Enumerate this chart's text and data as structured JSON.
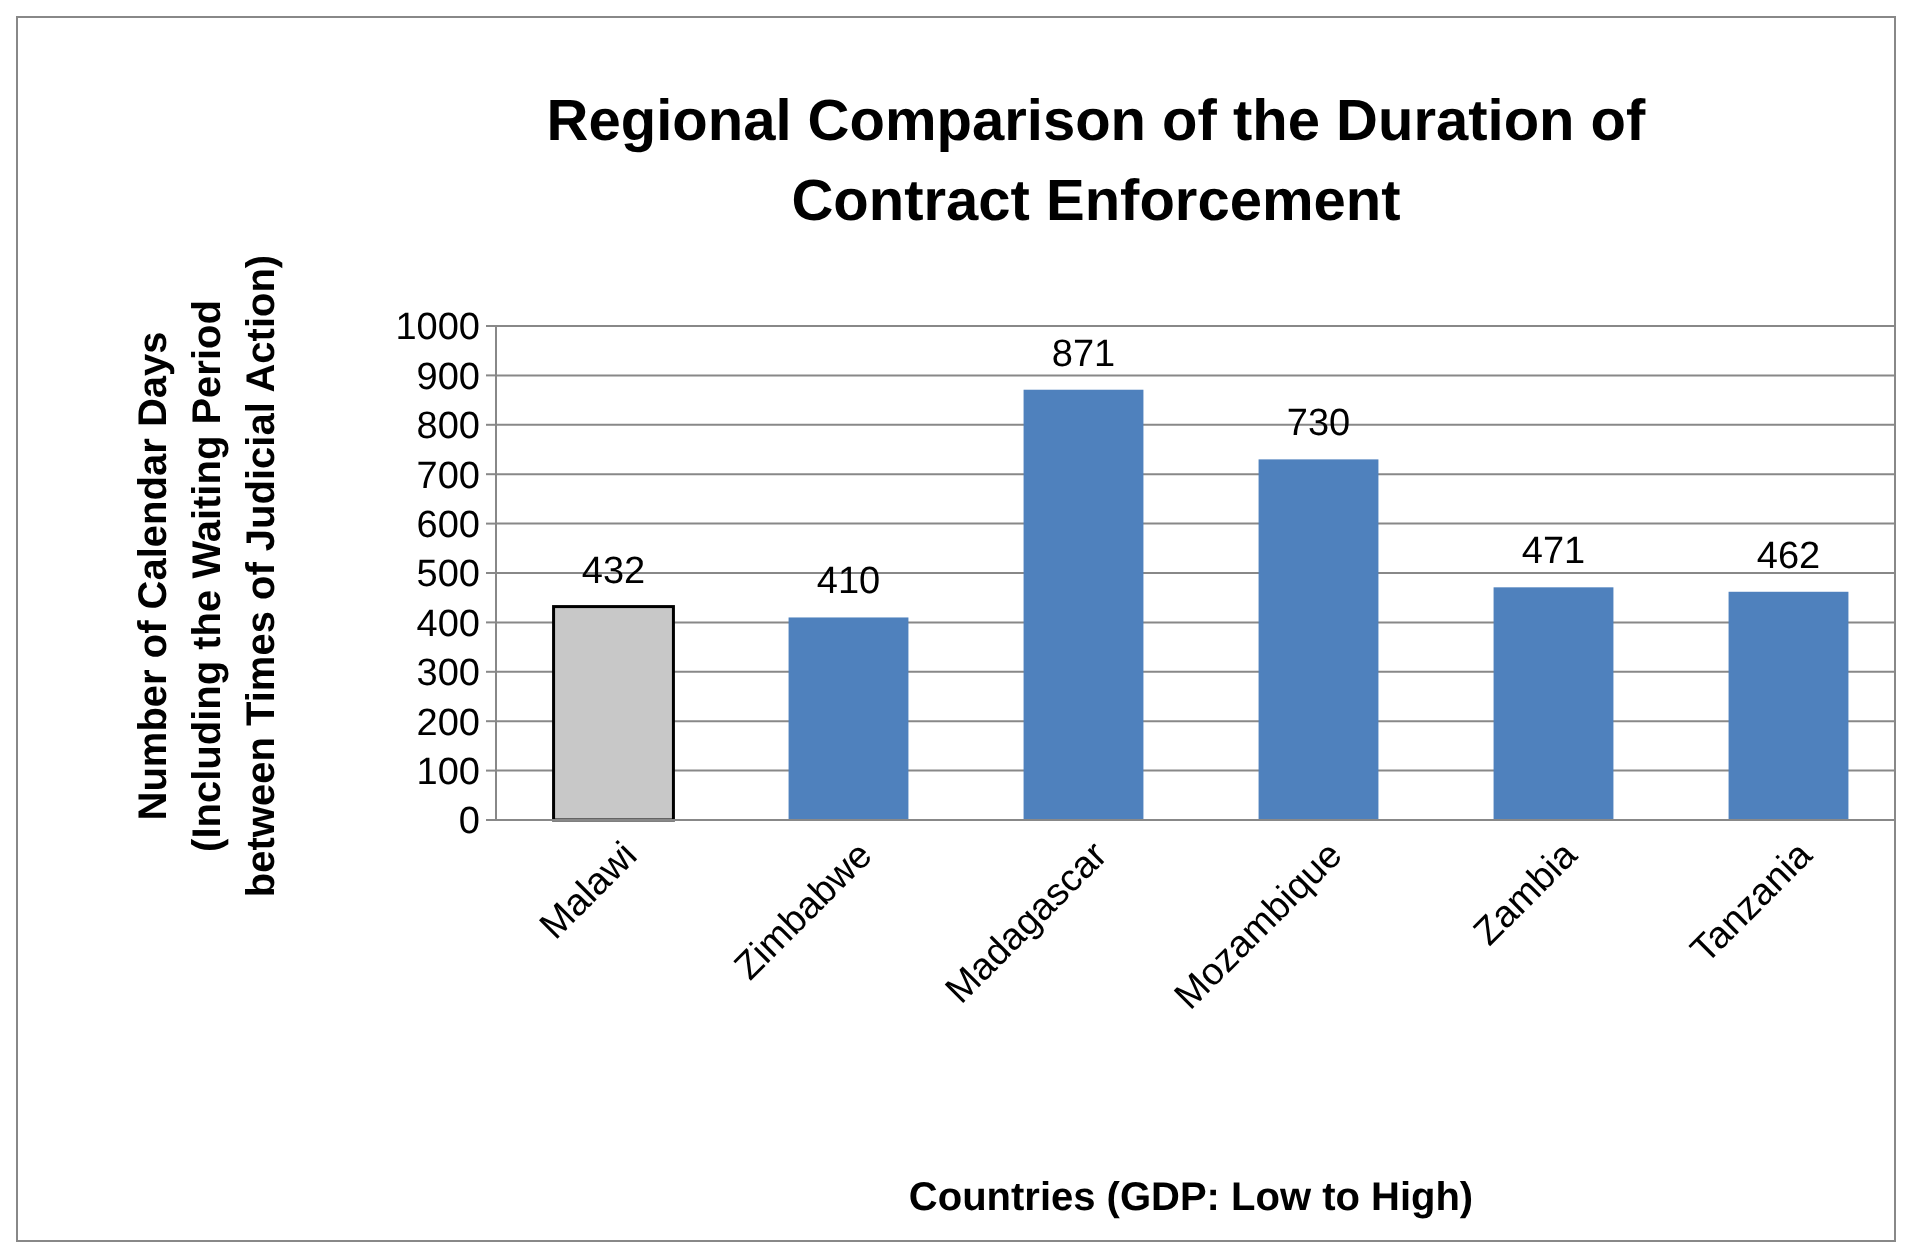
{
  "chart_data": {
    "type": "bar",
    "title": "Regional Comparison of the Duration of Contract Enforcement",
    "xlabel": "Countries (GDP: Low to High)",
    "ylabel": "Number of Calendar Days (Including the Waiting Period between Times of Judicial Action)",
    "categories": [
      "Malawi",
      "Zimbabwe",
      "Madagascar",
      "Mozambique",
      "Zambia",
      "Tanzania"
    ],
    "values": [
      432,
      410,
      871,
      730,
      471,
      462
    ],
    "colors": [
      "#c8c8c8",
      "#4f81bd",
      "#4f81bd",
      "#4f81bd",
      "#4f81bd",
      "#4f81bd"
    ],
    "ylim": [
      0,
      1000
    ],
    "yticks": [
      0,
      100,
      200,
      300,
      400,
      500,
      600,
      700,
      800,
      900,
      1000
    ],
    "grid": "y",
    "data_labels": true
  }
}
